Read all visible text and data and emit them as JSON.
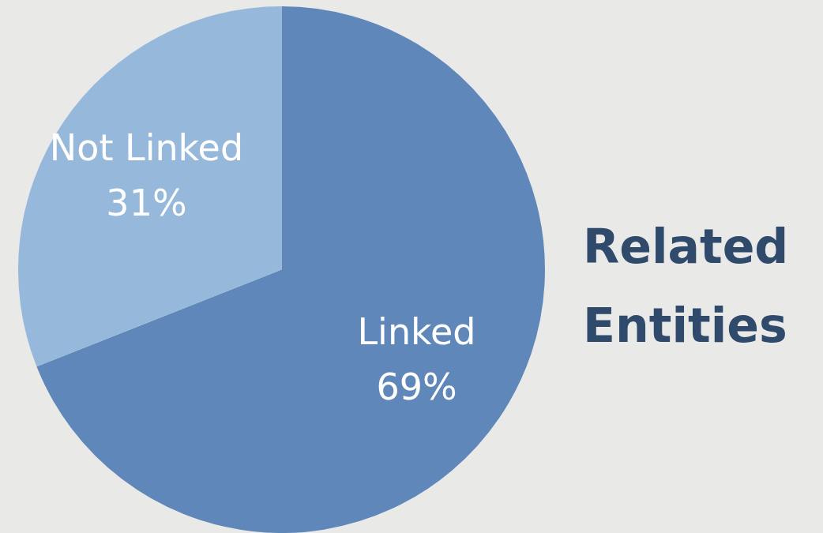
{
  "chart_data": {
    "type": "pie",
    "title": "Related Entities",
    "categories": [
      "Linked",
      "Not Linked"
    ],
    "values": [
      69,
      31
    ],
    "colors": [
      "#5f87ba",
      "#95b8db"
    ],
    "value_labels": [
      "69%",
      "31%"
    ],
    "legend": false
  }
}
